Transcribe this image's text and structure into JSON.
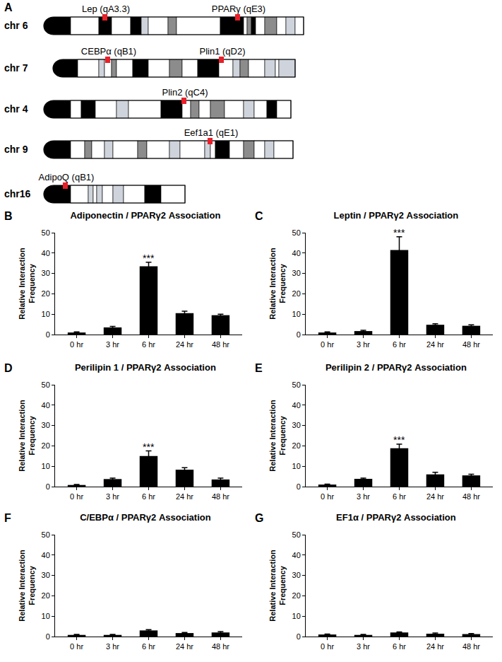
{
  "panel_a": {
    "label": "A",
    "chromosomes": [
      {
        "name": "chr 6",
        "loci": [
          "Lep (qA3.3)",
          "PPARγ (qE3)"
        ]
      },
      {
        "name": "chr 7",
        "loci": [
          "CEBPα (qB1)",
          "Plin1 (qD2)"
        ]
      },
      {
        "name": "chr 4",
        "loci": [
          "Plin2 (qC4)"
        ]
      },
      {
        "name": "chr 9",
        "loci": [
          "Eef1a1 (qE1)"
        ]
      },
      {
        "name": "chr16",
        "loci": [
          "AdipoQ (qB1)"
        ]
      }
    ]
  },
  "chart_data": [
    {
      "panel": "B",
      "type": "bar",
      "title": "Adiponectin / PPARγ2 Association",
      "y_label": "Relative Interaction Frequency",
      "categories": [
        "0 hr",
        "3 hr",
        "6 hr",
        "24 hr",
        "48 hr"
      ],
      "values": [
        1,
        3.5,
        33.5,
        10.5,
        9.5
      ],
      "errors": [
        0.3,
        0.5,
        2,
        1,
        0.5
      ],
      "color": "#000000",
      "ylim": [
        0,
        50
      ],
      "yticks": [
        0,
        10,
        20,
        30,
        40,
        50
      ],
      "grid": false,
      "annotations": [
        {
          "x": "6 hr",
          "text": "***"
        }
      ]
    },
    {
      "panel": "C",
      "type": "bar",
      "title": "Leptin / PPARγ2 Association",
      "y_label": "Relative Interaction Frequency",
      "categories": [
        "0 hr",
        "3 hr",
        "6 hr",
        "24 hr",
        "48 hr"
      ],
      "values": [
        1,
        1.7,
        41.5,
        4.8,
        4.3
      ],
      "errors": [
        0.3,
        0.4,
        6.5,
        0.5,
        0.5
      ],
      "color": "#000000",
      "ylim": [
        0,
        50
      ],
      "yticks": [
        0,
        10,
        20,
        30,
        40,
        50
      ],
      "grid": false,
      "annotations": [
        {
          "x": "6 hr",
          "text": "***"
        }
      ]
    },
    {
      "panel": "D",
      "type": "bar",
      "title": "Perilipin 1 / PPARγ2 Association",
      "y_label": "Relative Interaction Frequency",
      "categories": [
        "0 hr",
        "3 hr",
        "6 hr",
        "24 hr",
        "48 hr"
      ],
      "values": [
        0.8,
        3.7,
        15,
        8.3,
        3.5
      ],
      "errors": [
        0.2,
        0.5,
        2.5,
        1,
        0.7
      ],
      "color": "#000000",
      "ylim": [
        0,
        50
      ],
      "yticks": [
        0,
        10,
        20,
        30,
        40,
        50
      ],
      "grid": false,
      "annotations": [
        {
          "x": "6 hr",
          "text": "***"
        }
      ]
    },
    {
      "panel": "E",
      "type": "bar",
      "title": "Perilipin 2 / PPARγ2 Association",
      "y_label": "Relative Interaction Frequency",
      "categories": [
        "0 hr",
        "3 hr",
        "6 hr",
        "24 hr",
        "48 hr"
      ],
      "values": [
        1,
        3.8,
        18.8,
        6,
        5.5
      ],
      "errors": [
        0.2,
        0.4,
        2,
        1,
        0.6
      ],
      "color": "#000000",
      "ylim": [
        0,
        50
      ],
      "yticks": [
        0,
        10,
        20,
        30,
        40,
        50
      ],
      "grid": false,
      "annotations": [
        {
          "x": "6 hr",
          "text": "***"
        }
      ]
    },
    {
      "panel": "F",
      "type": "bar",
      "title": "C/EBPα / PPARγ2 Association",
      "y_label": "Relative Interaction Frequency",
      "categories": [
        "0 hr",
        "3 hr",
        "6 hr",
        "24 hr",
        "48 hr"
      ],
      "values": [
        0.8,
        0.8,
        3,
        1.7,
        2
      ],
      "errors": [
        0.2,
        0.2,
        0.4,
        0.3,
        0.4
      ],
      "color": "#000000",
      "ylim": [
        0,
        50
      ],
      "yticks": [
        0,
        10,
        20,
        30,
        40,
        50
      ],
      "grid": false
    },
    {
      "panel": "G",
      "type": "bar",
      "title": "EF1α / PPARγ2 Association",
      "y_label": "Relative Interaction Frequency",
      "categories": [
        "0 hr",
        "3 hr",
        "6 hr",
        "24 hr",
        "48 hr"
      ],
      "values": [
        1,
        0.8,
        2,
        1.4,
        1.2
      ],
      "errors": [
        0.2,
        0.2,
        0.3,
        0.3,
        0.3
      ],
      "color": "#000000",
      "ylim": [
        0,
        50
      ],
      "yticks": [
        0,
        10,
        20,
        30,
        40,
        50
      ],
      "grid": false
    }
  ]
}
